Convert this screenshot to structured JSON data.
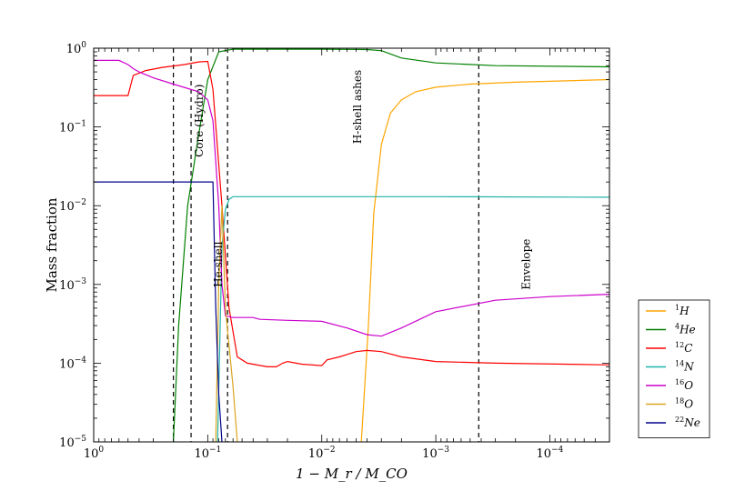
{
  "chart_data": {
    "type": "line",
    "xlabel": "1 − M_r / M_CO",
    "ylabel": "Mass fraction",
    "xscale": "log",
    "yscale": "log",
    "xlim": [
      1,
      3e-05
    ],
    "ylim": [
      1e-05,
      1
    ],
    "x_ticks": [
      {
        "value": 1,
        "base": "10",
        "exp": "0"
      },
      {
        "value": 0.1,
        "base": "10",
        "exp": "−1"
      },
      {
        "value": 0.01,
        "base": "10",
        "exp": "−2"
      },
      {
        "value": 0.001,
        "base": "10",
        "exp": "−3"
      },
      {
        "value": 0.0001,
        "base": "10",
        "exp": "−4"
      }
    ],
    "y_ticks": [
      {
        "value": 1,
        "base": "10",
        "exp": "0"
      },
      {
        "value": 0.1,
        "base": "10",
        "exp": "−1"
      },
      {
        "value": 0.01,
        "base": "10",
        "exp": "−2"
      },
      {
        "value": 0.001,
        "base": "10",
        "exp": "−3"
      },
      {
        "value": 0.0001,
        "base": "10",
        "exp": "−4"
      },
      {
        "value": 1e-05,
        "base": "10",
        "exp": "−5"
      }
    ],
    "region_boundaries": [
      0.2,
      0.14,
      0.067,
      0.00042
    ],
    "annotations": [
      {
        "text": "Core (Hydro)",
        "x": 0.11,
        "y": 0.12,
        "rotate": -90
      },
      {
        "text": "He-shell",
        "x": 0.075,
        "y": 0.0018,
        "rotate": -90
      },
      {
        "text": "H-shell ashes",
        "x": 0.0045,
        "y": 0.18,
        "rotate": -90
      },
      {
        "text": "Envelope",
        "x": 0.00015,
        "y": 0.0018,
        "rotate": -90
      }
    ],
    "series": [
      {
        "name": "H",
        "mass": "1",
        "color": "#ffa500",
        "points": [
          [
            0.0045,
            1e-05
          ],
          [
            0.0039,
            0.0003
          ],
          [
            0.0035,
            0.008
          ],
          [
            0.003,
            0.06
          ],
          [
            0.0025,
            0.15
          ],
          [
            0.002,
            0.22
          ],
          [
            0.0015,
            0.28
          ],
          [
            0.001,
            0.32
          ],
          [
            0.0005,
            0.35
          ],
          [
            0.0002,
            0.37
          ],
          [
            0.0001,
            0.38
          ],
          [
            3e-05,
            0.4
          ]
        ]
      },
      {
        "name": "He",
        "mass": "4",
        "color": "#008000",
        "points": [
          [
            0.2,
            1e-05
          ],
          [
            0.18,
            0.0003
          ],
          [
            0.15,
            0.01
          ],
          [
            0.12,
            0.08
          ],
          [
            0.1,
            0.4
          ],
          [
            0.08,
            0.9
          ],
          [
            0.06,
            0.97
          ],
          [
            0.01,
            0.97
          ],
          [
            0.004,
            0.96
          ],
          [
            0.003,
            0.93
          ],
          [
            0.002,
            0.75
          ],
          [
            0.001,
            0.65
          ],
          [
            0.0003,
            0.6
          ],
          [
            3e-05,
            0.58
          ]
        ]
      },
      {
        "name": "C",
        "mass": "12",
        "color": "#ff0000",
        "points": [
          [
            1,
            0.25
          ],
          [
            0.5,
            0.25
          ],
          [
            0.45,
            0.45
          ],
          [
            0.35,
            0.52
          ],
          [
            0.25,
            0.57
          ],
          [
            0.16,
            0.62
          ],
          [
            0.12,
            0.67
          ],
          [
            0.1,
            0.68
          ],
          [
            0.09,
            0.3
          ],
          [
            0.075,
            0.01
          ],
          [
            0.065,
            0.0005
          ],
          [
            0.055,
            0.00012
          ],
          [
            0.045,
            0.0001
          ],
          [
            0.03,
            9e-05
          ],
          [
            0.025,
            9e-05
          ],
          [
            0.022,
            0.0001
          ],
          [
            0.02,
            0.000105
          ],
          [
            0.015,
            9.7e-05
          ],
          [
            0.01,
            9.3e-05
          ],
          [
            0.009,
            0.00011
          ],
          [
            0.007,
            0.00012
          ],
          [
            0.005,
            0.00014
          ],
          [
            0.004,
            0.000145
          ],
          [
            0.003,
            0.00014
          ],
          [
            0.002,
            0.00012
          ],
          [
            0.001,
            0.000105
          ],
          [
            0.0003,
            0.0001
          ],
          [
            3e-05,
            9.5e-05
          ]
        ]
      },
      {
        "name": "N",
        "mass": "14",
        "color": "#20b2aa",
        "points": [
          [
            0.082,
            1e-05
          ],
          [
            0.075,
            0.003
          ],
          [
            0.07,
            0.009
          ],
          [
            0.065,
            0.012
          ],
          [
            0.06,
            0.013
          ],
          [
            0.01,
            0.013
          ],
          [
            0.001,
            0.013
          ],
          [
            3e-05,
            0.0128
          ]
        ]
      },
      {
        "name": "O",
        "mass": "16",
        "color": "#cc00cc",
        "points": [
          [
            1,
            0.7
          ],
          [
            0.6,
            0.7
          ],
          [
            0.5,
            0.62
          ],
          [
            0.45,
            0.55
          ],
          [
            0.4,
            0.5
          ],
          [
            0.3,
            0.42
          ],
          [
            0.2,
            0.35
          ],
          [
            0.12,
            0.28
          ],
          [
            0.1,
            0.22
          ],
          [
            0.09,
            0.12
          ],
          [
            0.08,
            0.01
          ],
          [
            0.075,
            0.001
          ],
          [
            0.07,
            0.0004
          ],
          [
            0.06,
            0.00038
          ],
          [
            0.04,
            0.00038
          ],
          [
            0.035,
            0.00036
          ],
          [
            0.02,
            0.00035
          ],
          [
            0.01,
            0.00034
          ],
          [
            0.006,
            0.00028
          ],
          [
            0.004,
            0.00023
          ],
          [
            0.003,
            0.00022
          ],
          [
            0.002,
            0.00028
          ],
          [
            0.001,
            0.00045
          ],
          [
            0.0003,
            0.00063
          ],
          [
            0.0001,
            0.0007
          ],
          [
            3e-05,
            0.00075
          ]
        ]
      },
      {
        "name": "O",
        "mass": "18",
        "color": "#daa520",
        "points": [
          [
            0.085,
            1e-05
          ],
          [
            0.08,
            0.001
          ],
          [
            0.075,
            0.01
          ],
          [
            0.07,
            0.0005
          ],
          [
            0.06,
            5e-05
          ],
          [
            0.055,
            1e-05
          ]
        ]
      },
      {
        "name": "Ne",
        "mass": "22",
        "color": "#00008b",
        "points": [
          [
            1,
            0.02
          ],
          [
            0.3,
            0.02
          ],
          [
            0.12,
            0.02
          ],
          [
            0.09,
            0.02
          ],
          [
            0.085,
            0.0005
          ],
          [
            0.08,
            4e-05
          ],
          [
            0.075,
            1e-05
          ]
        ]
      }
    ]
  }
}
